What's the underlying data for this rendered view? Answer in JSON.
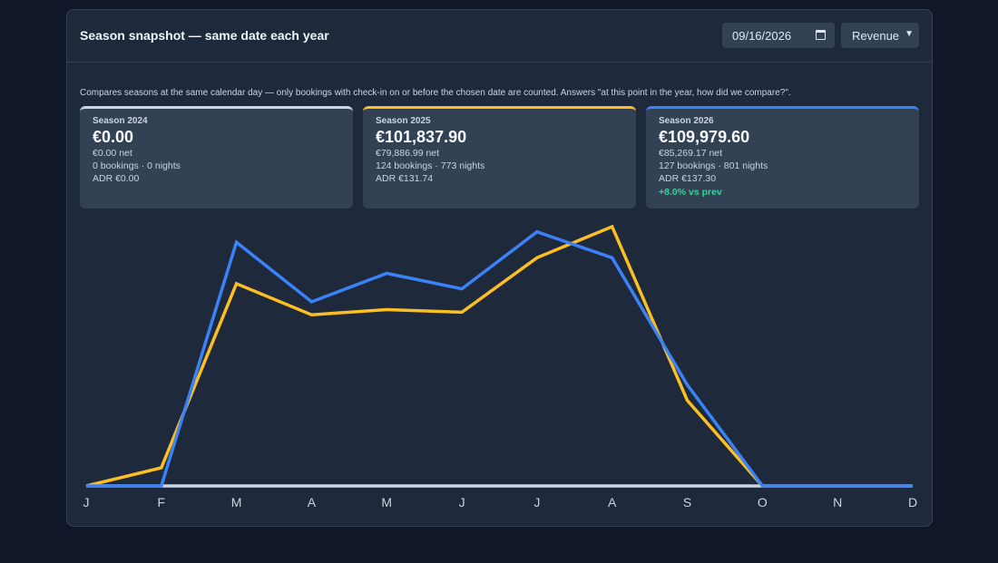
{
  "panel": {
    "title": "Season snapshot — same date each year",
    "date_value": "09/16/2026",
    "metric_selected": "Revenue",
    "description": "Compares seasons at the same calendar day — only bookings with check-in on or before the chosen date are counted. Answers \"at this point in the year, how did we compare?\"."
  },
  "cards": [
    {
      "label": "Season 2024",
      "value": "€0.00",
      "net": "€0.00 net",
      "counts": "0 bookings · 0 nights",
      "adr": "ADR €0.00",
      "delta": "",
      "accent": "#cbd5e1"
    },
    {
      "label": "Season 2025",
      "value": "€101,837.90",
      "net": "€79,886.99 net",
      "counts": "124 bookings · 773 nights",
      "adr": "ADR €131.74",
      "delta": "",
      "accent": "#fbbf24"
    },
    {
      "label": "Season 2026",
      "value": "€109,979.60",
      "net": "€85,269.17 net",
      "counts": "127 bookings · 801 nights",
      "adr": "ADR €137.30",
      "delta": "+8.0% vs prev",
      "accent": "#3b82f6"
    }
  ],
  "icons": {
    "date": "calendar-icon",
    "select": "chevron-down-icon"
  },
  "chart_data": {
    "type": "line",
    "categories": [
      "J",
      "F",
      "M",
      "A",
      "M",
      "J",
      "J",
      "A",
      "S",
      "O",
      "N",
      "D"
    ],
    "ylim": [
      0,
      100
    ],
    "grid": false,
    "series": [
      {
        "key": "2024",
        "color": "#cbd5e1",
        "values": [
          0,
          0,
          0,
          0,
          0,
          0,
          0,
          0,
          0,
          0,
          0,
          0
        ]
      },
      {
        "key": "2025",
        "color": "#fbbf24",
        "values": [
          0,
          7,
          78,
          66,
          68,
          67,
          88,
          100,
          33,
          0,
          0,
          0
        ]
      },
      {
        "key": "2026",
        "color": "#3b82f6",
        "values": [
          0,
          0,
          94,
          71,
          82,
          76,
          98,
          88,
          39,
          0,
          0,
          0
        ]
      }
    ]
  }
}
